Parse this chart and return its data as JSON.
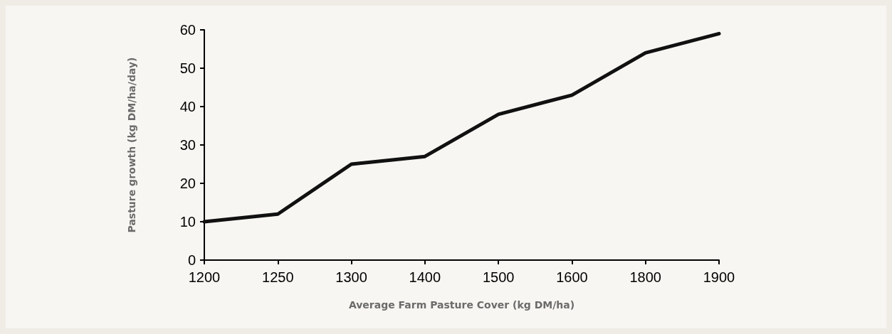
{
  "chart_data": {
    "type": "line",
    "xlabel": "Average Farm Pasture Cover (kg DM/ha)",
    "ylabel": "Pasture growth (kg DM/ha/day)",
    "categories": [
      "1200",
      "1250",
      "1300",
      "1400",
      "1500",
      "1600",
      "1800",
      "1900"
    ],
    "values": [
      10,
      12,
      25,
      27,
      38,
      43,
      54,
      59
    ],
    "color": "#111111",
    "ylim": [
      0,
      60
    ],
    "yticks": [
      0,
      10,
      20,
      30,
      40,
      50,
      60
    ],
    "grid": false,
    "marker": "none"
  }
}
